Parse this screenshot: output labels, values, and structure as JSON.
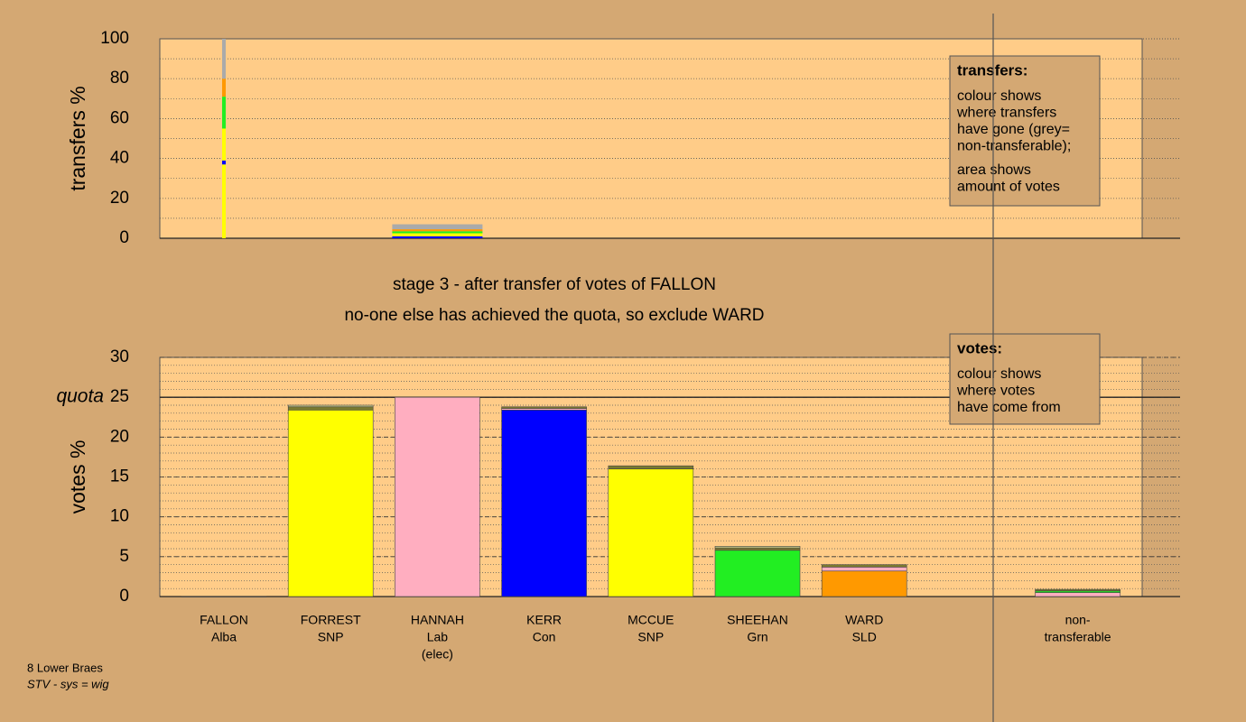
{
  "chart_data": [
    {
      "type": "stacked-bar",
      "ylabel": "transfers %",
      "ylim": [
        0,
        100
      ],
      "yticks": [
        0,
        20,
        40,
        60,
        80,
        100
      ],
      "minor_step": 10,
      "bars": [
        {
          "at": 0,
          "segments": [
            {
              "color": "#ffff00",
              "value": 37
            },
            {
              "color": "#0000ff",
              "value": 2
            },
            {
              "color": "#ffff00",
              "value": 16
            },
            {
              "color": "#22ee22",
              "value": 16
            },
            {
              "color": "#ff9900",
              "value": 9
            },
            {
              "color": "#aaaaaa",
              "value": 20
            }
          ]
        },
        {
          "at": 2,
          "segments": [
            {
              "color": "#0000ff",
              "value": 1
            },
            {
              "color": "#ffff00",
              "value": 1.5
            },
            {
              "color": "#22ee22",
              "value": 1
            },
            {
              "color": "#ff9900",
              "value": 1
            },
            {
              "color": "#aaaaaa",
              "value": 2.5
            }
          ]
        }
      ],
      "box": {
        "title": "transfers:",
        "lines": [
          [
            "colour shows",
            "where transfers",
            "have gone (grey=",
            "non-transferable);"
          ],
          [
            "area shows",
            "amount of votes"
          ]
        ]
      }
    },
    {
      "type": "stacked-bar",
      "title": [
        "stage 3 - after transfer of votes of FALLON",
        "no-one else has achieved the quota, so exclude WARD"
      ],
      "ylabel": "votes %",
      "ylim": [
        0,
        30
      ],
      "yticks": [
        0,
        5,
        10,
        15,
        20,
        25,
        30
      ],
      "minor_step": 1,
      "quota": 25,
      "quota_label": "quota",
      "categories": [
        [
          "FALLON",
          "Alba"
        ],
        [
          "FORREST",
          "SNP"
        ],
        [
          "HANNAH",
          "Lab",
          "(elec)"
        ],
        [
          "KERR",
          "Con"
        ],
        [
          "MCCUE",
          "SNP"
        ],
        [
          "SHEEHAN",
          "Grn"
        ],
        [
          "WARD",
          "SLD"
        ],
        null,
        [
          "non-",
          "transferable"
        ]
      ],
      "bars": [
        {
          "at": 0,
          "segments": [
            {
              "color": "#ffff00",
              "value": 0
            }
          ]
        },
        {
          "at": 1,
          "segments": [
            {
              "color": "#ffff00",
              "value": 23.4
            },
            {
              "color": "#7a7a30",
              "value": 0.4
            },
            {
              "color": "#cccc88",
              "value": 0.2
            }
          ]
        },
        {
          "at": 2,
          "segments": [
            {
              "color": "#ffaec0",
              "value": 25
            }
          ]
        },
        {
          "at": 3,
          "segments": [
            {
              "color": "#0000ff",
              "value": 23.4
            },
            {
              "color": "#ffaec0",
              "value": 0.2
            },
            {
              "color": "#7a7a30",
              "value": 0.2
            }
          ]
        },
        {
          "at": 4,
          "segments": [
            {
              "color": "#ffff00",
              "value": 16
            },
            {
              "color": "#7a7a30",
              "value": 0.4
            }
          ]
        },
        {
          "at": 5,
          "segments": [
            {
              "color": "#22ee22",
              "value": 5.8
            },
            {
              "color": "#7a7a30",
              "value": 0.3
            },
            {
              "color": "#cccc88",
              "value": 0.2
            }
          ]
        },
        {
          "at": 6,
          "segments": [
            {
              "color": "#ff9900",
              "value": 3.2
            },
            {
              "color": "#ffaec0",
              "value": 0.5
            },
            {
              "color": "#7a7a30",
              "value": 0.3
            }
          ]
        },
        {
          "at": 8,
          "segments": [
            {
              "color": "#ffaec0",
              "value": 0.5
            },
            {
              "color": "#22ee22",
              "value": 0.2
            },
            {
              "color": "#7a7a30",
              "value": 0.2
            }
          ]
        }
      ],
      "box": {
        "title": "votes:",
        "lines": [
          [
            "colour shows",
            "where votes",
            "have come from"
          ]
        ]
      }
    }
  ],
  "footer": {
    "place": "8 Lower Braes",
    "system": "STV - sys = wig"
  }
}
